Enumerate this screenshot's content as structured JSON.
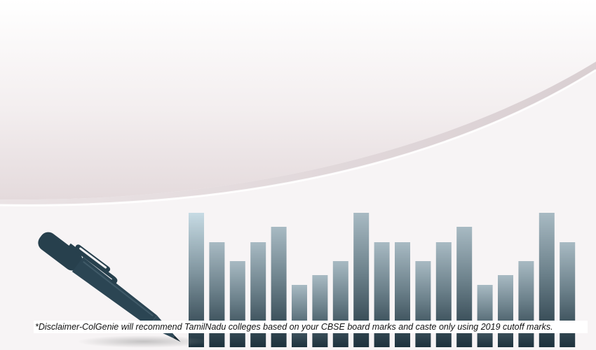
{
  "banner": {
    "disclaimer_text": "*Disclaimer-ColGenie will recommend TamilNadu colleges based on your CBSE board marks and caste only using 2019 cutoff marks.",
    "decor_icon": "pen-icon",
    "decor_graphic": "bar-chart-decoration",
    "colors": {
      "background": "#f7f4f5",
      "swoosh": "#dcd2d4",
      "pen": "#27404d",
      "bar_top": "#c7dbe4",
      "bar_bottom": "#1e323d"
    },
    "bar_levels": [
      6,
      4,
      3,
      4,
      5,
      1,
      2,
      3,
      6,
      4,
      4,
      3,
      4,
      5,
      1,
      2,
      3,
      6,
      4
    ]
  }
}
